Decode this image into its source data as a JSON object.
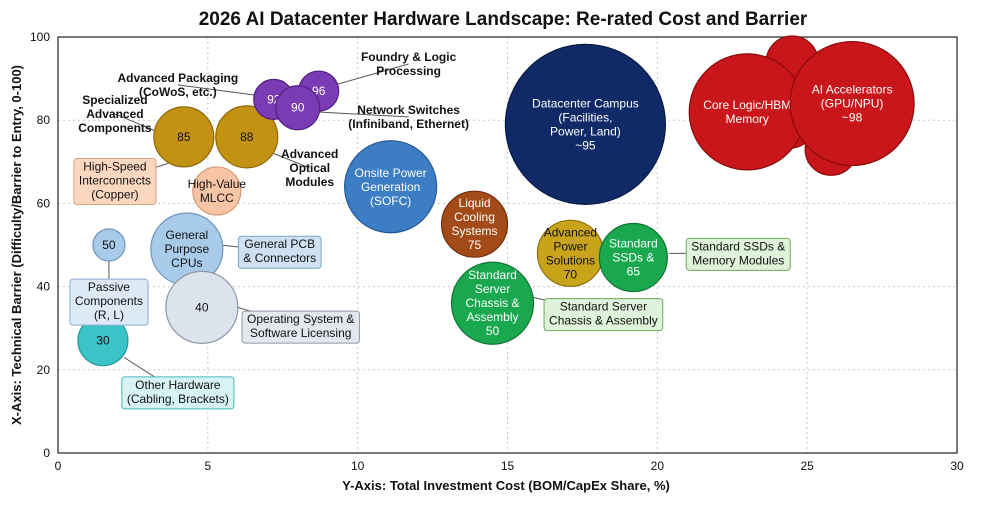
{
  "chart_data": {
    "type": "scatter",
    "title": "2026 AI Datacenter Hardware Landscape: Re-rated Cost and Barrier",
    "xlabel": "Y-Axis: Total Investment Cost (BOM/CapEx Share, %)",
    "ylabel": "X-Axis: Technical Barrier (Difficulty/Barrier to Entry, 0-100)",
    "xlim": [
      0,
      30
    ],
    "ylim": [
      0,
      100
    ],
    "xticks": [
      0,
      5,
      10,
      15,
      20,
      25,
      30
    ],
    "yticks": [
      0,
      20,
      40,
      60,
      80,
      100
    ],
    "x_tick_labels": [
      "0",
      "5",
      "10",
      "15",
      "20",
      "25",
      "30"
    ],
    "y_tick_labels": [
      "0",
      "20",
      "40",
      "60",
      "80",
      "100"
    ],
    "grid": true,
    "bubbles": [
      {
        "x": 1.7,
        "y": 50,
        "r": 16,
        "color": "#a9cbea",
        "stroke": "#6f95bb",
        "text_color": "#111111",
        "label_lines": [
          "50"
        ]
      },
      {
        "x": 1.5,
        "y": 27,
        "r": 25,
        "color": "#3cc3c8",
        "stroke": "#23979b",
        "text_color": "#111111",
        "label_lines": [
          "30"
        ]
      },
      {
        "x": 4.3,
        "y": 49,
        "r": 36,
        "color": "#a9cbea",
        "stroke": "#6f95bb",
        "text_color": "#111111",
        "label_lines": [
          "General",
          "Purpose",
          "CPUs"
        ]
      },
      {
        "x": 4.8,
        "y": 35,
        "r": 36,
        "color": "#dbe3ec",
        "stroke": "#8e99a6",
        "text_color": "#111111",
        "label_lines": [
          "40"
        ]
      },
      {
        "x": 5.3,
        "y": 63,
        "r": 24,
        "color": "#f7c5a6",
        "stroke": "#d69a72",
        "text_color": "#111111",
        "label_lines": [
          "High-Value",
          "MLCC"
        ]
      },
      {
        "x": 4.2,
        "y": 76,
        "r": 30,
        "color": "#c49212",
        "stroke": "#8d680a",
        "text_color": "#111111",
        "label_lines": [
          "85"
        ]
      },
      {
        "x": 6.3,
        "y": 76,
        "r": 31,
        "color": "#c49212",
        "stroke": "#8d680a",
        "text_color": "#111111",
        "label_lines": [
          "88"
        ]
      },
      {
        "x": 7.2,
        "y": 85,
        "r": 20,
        "color": "#7b3bb5",
        "stroke": "#542180",
        "text_color": "#ffffff",
        "label_lines": [
          "92"
        ]
      },
      {
        "x": 8.7,
        "y": 87,
        "r": 20,
        "color": "#7b3bb5",
        "stroke": "#542180",
        "text_color": "#ffffff",
        "label_lines": [
          "96"
        ]
      },
      {
        "x": 8.0,
        "y": 83,
        "r": 22,
        "color": "#7b3bb5",
        "stroke": "#542180",
        "text_color": "#ffffff",
        "label_lines": [
          "90"
        ]
      },
      {
        "x": 11.1,
        "y": 64,
        "r": 46,
        "color": "#3d7dc4",
        "stroke": "#245a96",
        "text_color": "#ffffff",
        "label_lines": [
          "Onsite Power",
          "Generation",
          "(SOFC)"
        ]
      },
      {
        "x": 13.9,
        "y": 55,
        "r": 33,
        "color": "#a34b18",
        "stroke": "#6f300c",
        "text_color": "#ffffff",
        "label_lines": [
          "Liquid",
          "Cooling",
          "Systems",
          "75"
        ]
      },
      {
        "x": 17.1,
        "y": 48,
        "r": 33,
        "color": "#c9a31a",
        "stroke": "#8d710b",
        "text_color": "#111111",
        "label_lines": [
          "Advanced",
          "Power",
          "Solutions",
          "70"
        ]
      },
      {
        "x": 19.2,
        "y": 47,
        "r": 34,
        "color": "#1aa84f",
        "stroke": "#107534",
        "text_color": "#ffffff",
        "label_lines": [
          "Standard",
          "SSDs &",
          "65"
        ]
      },
      {
        "x": 14.5,
        "y": 36,
        "r": 41,
        "color": "#1aa84f",
        "stroke": "#107534",
        "text_color": "#ffffff",
        "label_lines": [
          "Standard",
          "Server",
          "Chassis &",
          "Assembly",
          "50"
        ]
      },
      {
        "x": 17.6,
        "y": 79,
        "r": 80,
        "color": "#0f2a66",
        "stroke": "#071a45",
        "text_color": "#ffffff",
        "label_lines": [
          "Datacenter Campus",
          "(Facilities,",
          "Power, Land)",
          "~95"
        ]
      },
      {
        "x": 24.5,
        "y": 94,
        "r": 26,
        "color": "#c9161a",
        "stroke": "#8a0a0d",
        "text_color": "#ffffff",
        "label_lines": []
      },
      {
        "x": 24.4,
        "y": 80,
        "r": 28,
        "color": "#c9161a",
        "stroke": "#8a0a0d",
        "text_color": "#ffffff",
        "label_lines": []
      },
      {
        "x": 25.8,
        "y": 73,
        "r": 26,
        "color": "#c9161a",
        "stroke": "#8a0a0d",
        "text_color": "#ffffff",
        "label_lines": []
      },
      {
        "x": 23.0,
        "y": 82,
        "r": 58,
        "color": "#c9161a",
        "stroke": "#8a0a0d",
        "text_color": "#ffffff",
        "label_lines": [
          "Core Logic/HBM",
          "Memory"
        ]
      },
      {
        "x": 26.5,
        "y": 84,
        "r": 62,
        "color": "#c9161a",
        "stroke": "#8a0a0d",
        "text_color": "#ffffff",
        "label_lines": [
          "AI Accelerators",
          "(GPU/NPU)",
          "~98"
        ]
      }
    ],
    "callouts": [
      {
        "text_lines": [
          "Foundry & Logic",
          "Processing"
        ],
        "x": 11.7,
        "y": 93.5,
        "boxed": false,
        "bold": true,
        "anchor": "middle",
        "fill": "none",
        "stroke": "none",
        "line_to": [
          9.0,
          88
        ]
      },
      {
        "text_lines": [
          "Advanced Packaging",
          "(CoWoS, etc.)"
        ],
        "x": 4.0,
        "y": 88.5,
        "boxed": false,
        "bold": true,
        "anchor": "middle",
        "fill": "none",
        "stroke": "none",
        "line_to": [
          6.6,
          86
        ]
      },
      {
        "text_lines": [
          "Network Switches",
          "(Infiniband, Ethernet)"
        ],
        "x": 11.7,
        "y": 80.8,
        "boxed": false,
        "bold": true,
        "anchor": "middle",
        "fill": "none",
        "stroke": "none",
        "line_to": [
          8.6,
          82
        ]
      },
      {
        "text_lines": [
          "Specialized",
          "Advanced",
          "Components"
        ],
        "x": 1.9,
        "y": 81.5,
        "boxed": false,
        "bold": true,
        "anchor": "middle",
        "fill": "none",
        "stroke": "none",
        "line_to": [
          3.4,
          77
        ]
      },
      {
        "text_lines": [
          "Advanced",
          "Optical",
          "Modules"
        ],
        "x": 8.4,
        "y": 68.5,
        "boxed": false,
        "bold": true,
        "anchor": "middle",
        "fill": "none",
        "stroke": "none",
        "line_to": [
          7.2,
          72
        ]
      },
      {
        "text_lines": [
          "High-Speed",
          "Interconnects",
          "(Copper)"
        ],
        "x": 1.9,
        "y": 65.5,
        "boxed": true,
        "bold": false,
        "anchor": "middle",
        "fill": "#fbd7bf",
        "stroke": "#d9a47f",
        "line_to": [
          4.7,
          72
        ]
      },
      {
        "text_lines": [
          "General PCB",
          "& Connectors"
        ],
        "x": 7.4,
        "y": 48.5,
        "boxed": true,
        "bold": false,
        "anchor": "middle",
        "fill": "#cfe0f3",
        "stroke": "#7ea3c9",
        "line_to": [
          5.4,
          50
        ]
      },
      {
        "text_lines": [
          "Passive",
          "Components",
          "(R, L)"
        ],
        "x": 1.7,
        "y": 36.5,
        "boxed": true,
        "bold": false,
        "anchor": "middle",
        "fill": "#dde9f7",
        "stroke": "#8aaed4",
        "line_to": [
          1.7,
          46
        ]
      },
      {
        "text_lines": [
          "Operating System &",
          "Software Licensing"
        ],
        "x": 8.1,
        "y": 30.5,
        "boxed": true,
        "bold": false,
        "anchor": "middle",
        "fill": "#e3e8ee",
        "stroke": "#8e99a6",
        "line_to": [
          6.0,
          35
        ]
      },
      {
        "text_lines": [
          "Other Hardware",
          "(Cabling, Brackets)"
        ],
        "x": 4.0,
        "y": 14.7,
        "boxed": true,
        "bold": false,
        "anchor": "middle",
        "fill": "#d8f3f4",
        "stroke": "#45b8bd",
        "line_to": [
          2.2,
          23
        ]
      },
      {
        "text_lines": [
          "Standard Server",
          "Chassis & Assembly"
        ],
        "x": 18.2,
        "y": 33.5,
        "boxed": true,
        "bold": false,
        "anchor": "middle",
        "fill": "#dff2da",
        "stroke": "#6aaa5c",
        "line_to": [
          15.5,
          38
        ]
      },
      {
        "text_lines": [
          "Standard SSDs &",
          "Memory Modules"
        ],
        "x": 22.7,
        "y": 48,
        "boxed": true,
        "bold": false,
        "anchor": "middle",
        "fill": "#dff2da",
        "stroke": "#6aaa5c",
        "line_to": [
          20.4,
          48
        ]
      }
    ]
  }
}
